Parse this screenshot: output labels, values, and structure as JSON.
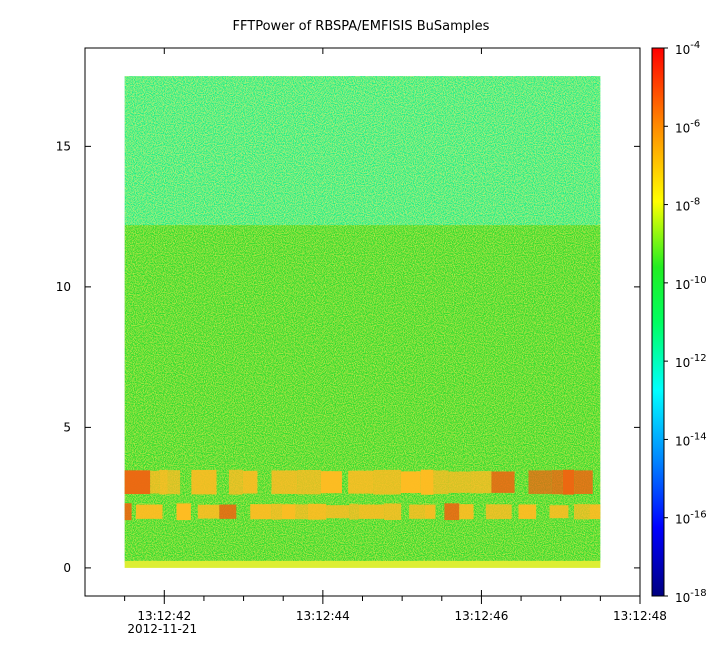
{
  "chart_data": {
    "type": "heatmap",
    "title": "FFTPower of RBSPA/EMFISIS  BuSamples",
    "xlabel": "",
    "ylabel": "",
    "x_range": [
      "13:12:41.0",
      "13:12:48.0"
    ],
    "data_extent_x": [
      "13:12:41.5",
      "13:12:47.5"
    ],
    "x_ticks": [
      {
        "value": "13:12:42",
        "label": "13:12:42",
        "sublabel": "2012-11-21"
      },
      {
        "value": "13:12:44",
        "label": "13:12:44"
      },
      {
        "value": "13:12:46",
        "label": "13:12:46"
      },
      {
        "value": "13:12:48",
        "label": "13:12:48"
      }
    ],
    "x_minor_ticks": [
      "13:12:41.5",
      "13:12:42.5",
      "13:12:43.0",
      "13:12:43.5",
      "13:12:44.5",
      "13:12:45.0",
      "13:12:45.5",
      "13:12:46.5",
      "13:12:47.0",
      "13:12:47.5"
    ],
    "y_range": [
      -1,
      18.5
    ],
    "data_extent_y": [
      0,
      17.5
    ],
    "y_ticks": [
      0,
      5,
      10,
      15
    ],
    "colorbar": {
      "scale": "log",
      "range": [
        1e-18,
        0.0001
      ],
      "colormap": "rainbow",
      "ticks": [
        {
          "base": "10",
          "exp": "-4"
        },
        {
          "base": "10",
          "exp": "-6"
        },
        {
          "base": "10",
          "exp": "-8"
        },
        {
          "base": "10",
          "exp": "-10"
        },
        {
          "base": "10",
          "exp": "-12"
        },
        {
          "base": "10",
          "exp": "-14"
        },
        {
          "base": "10",
          "exp": "-16"
        },
        {
          "base": "10",
          "exp": "-18"
        }
      ]
    },
    "features": [
      {
        "y_range": [
          12.2,
          17.5
        ],
        "level_exp": -12.8
      },
      {
        "y_range": [
          0.2,
          12.2
        ],
        "level_exp": -10.6
      },
      {
        "y_range": [
          0,
          0.25
        ],
        "level_exp": -8.7
      },
      {
        "y_range": [
          2.6,
          3.5
        ],
        "level_exp": -8.0
      },
      {
        "y_range": [
          1.7,
          2.3
        ],
        "level_exp": -7.6
      }
    ],
    "colors": {
      "upper": "#22ee88",
      "lower": "#33dd33",
      "band": "#ffbb22",
      "band_peak": "#ee6611",
      "baseline": "#ddee33"
    }
  }
}
